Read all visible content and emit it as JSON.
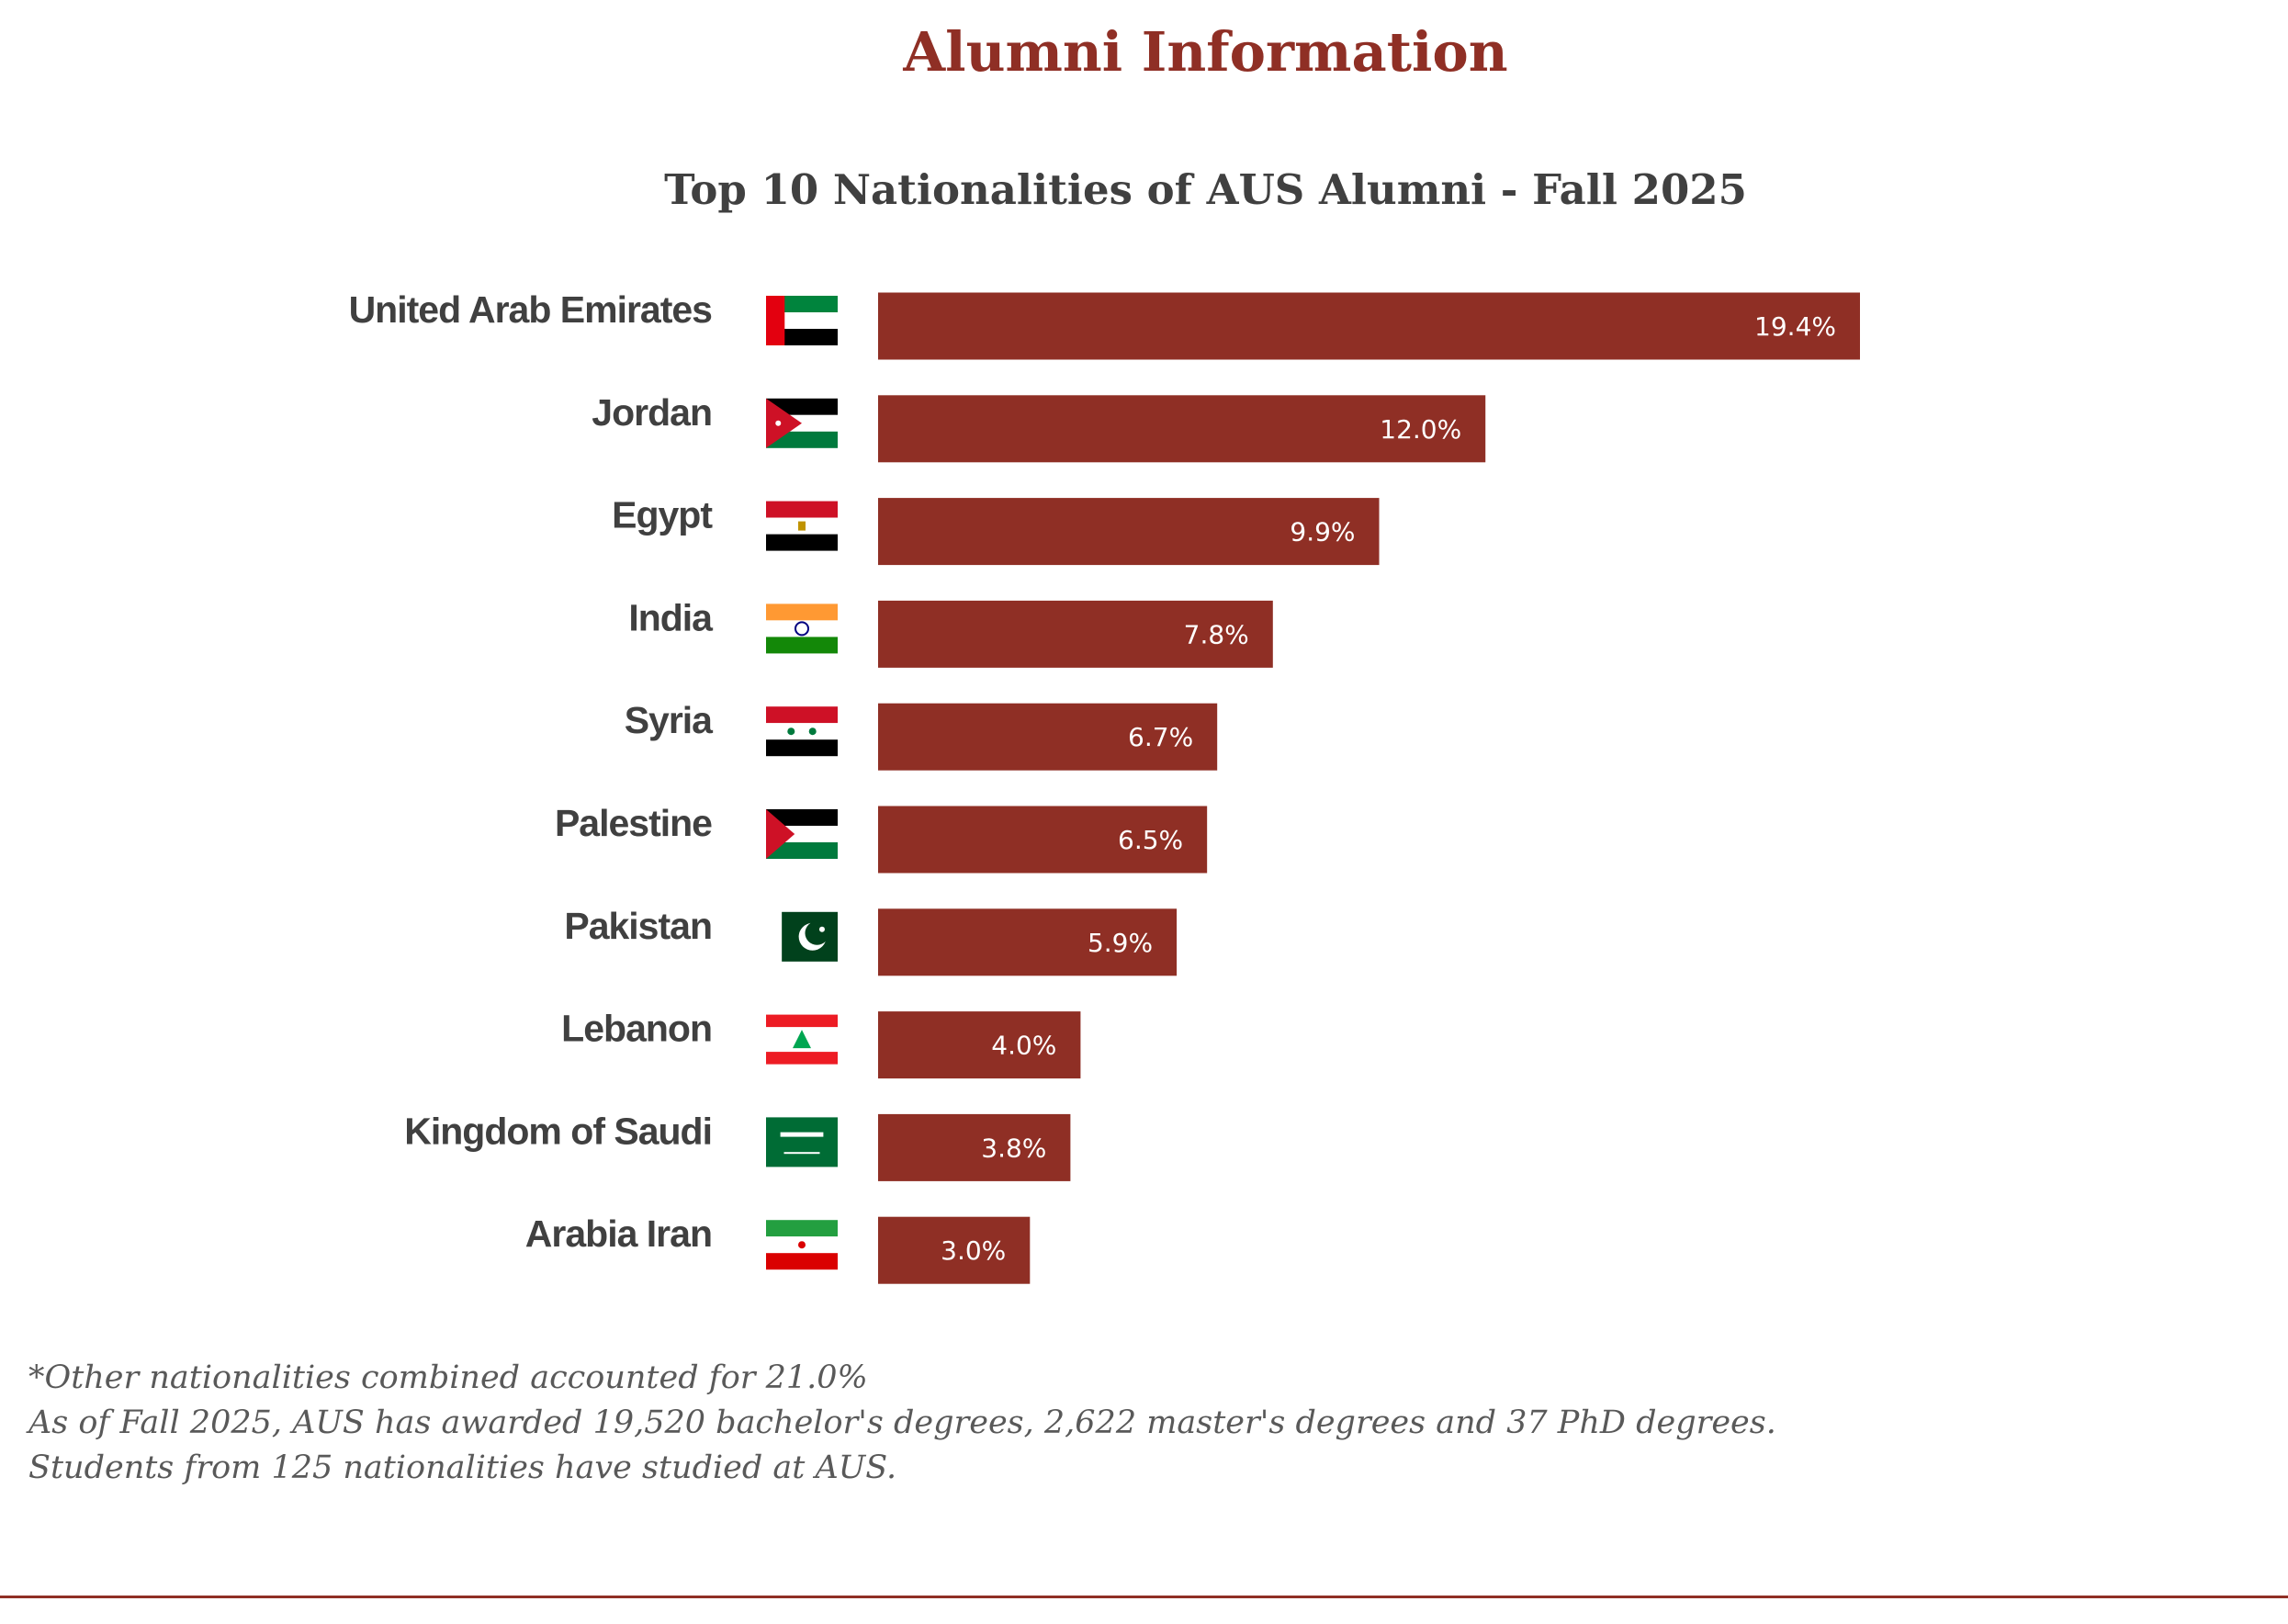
{
  "page": {
    "title": "Alumni Information",
    "notes": [
      "*Other nationalities combined accounted for 21.0%",
      "As of Fall 2025, AUS has awarded 19,520 bachelor's degrees, 2,622 master's degrees and 37 PhD degrees.",
      "Students from 125 nationalities have studied at AUS."
    ]
  },
  "colors": {
    "bar": "#8f2f25",
    "title": "#8f2f25",
    "subtitle": "#404040",
    "label": "#404040",
    "note": "#595959"
  },
  "chart_data": {
    "type": "bar",
    "orientation": "horizontal",
    "title": "Top 10 Nationalities of AUS Alumni - Fall 2025",
    "categories": [
      "United Arab Emirates",
      "Jordan",
      "Egypt",
      "India",
      "Syria",
      "Palestine",
      "Pakistan",
      "Lebanon",
      "Kingdom of Saudi",
      "Arabia Iran"
    ],
    "values": [
      19.4,
      12.0,
      9.9,
      7.8,
      6.7,
      6.5,
      5.9,
      4.0,
      3.8,
      3.0
    ],
    "data_labels": [
      "19.4%",
      "12.0%",
      "9.9%",
      "7.8%",
      "6.7%",
      "6.5%",
      "5.9%",
      "4.0%",
      "3.8%",
      "3.0%"
    ],
    "flags": [
      "uae-flag-icon",
      "jordan-flag-icon",
      "egypt-flag-icon",
      "india-flag-icon",
      "syria-flag-icon",
      "palestine-flag-icon",
      "pakistan-flag-icon",
      "lebanon-flag-icon",
      "saudi-arabia-flag-icon",
      "iran-flag-icon"
    ],
    "xlim": [
      0,
      19.4
    ],
    "grid": false,
    "legend": "none"
  }
}
